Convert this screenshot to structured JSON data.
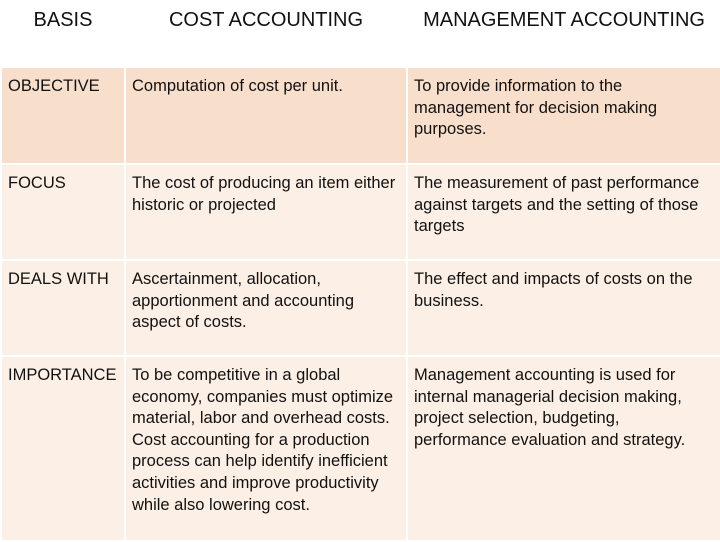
{
  "table": {
    "headers": [
      "BASIS",
      "COST ACCOUNTING",
      "MANAGEMENT ACCOUNTING"
    ],
    "rows": [
      {
        "basis": "OBJECTIVE",
        "cost": "Computation of cost per unit.",
        "management": "To provide information to the management for decision making purposes."
      },
      {
        "basis": "FOCUS",
        "cost": "The cost of producing an item either historic or projected",
        "management": "The measurement of past performance against targets and the setting of those targets"
      },
      {
        "basis": "DEALS WITH",
        "cost": "Ascertainment, allocation, apportionment and accounting aspect of costs.",
        "management": "The effect and impacts of costs on the business."
      },
      {
        "basis": "IMPORTANCE",
        "cost": "To be competitive in a global economy, companies must optimize material, labor and overhead costs. Cost accounting for a production process can help identify inefficient activities and improve productivity while also lowering cost.",
        "management": "Management accounting is used for internal managerial decision making, project selection, budgeting, performance evaluation and strategy."
      }
    ]
  },
  "colors": {
    "row_dark": "#f8dfcb",
    "row_light": "#fcefe5",
    "grid": "#ffffff"
  }
}
